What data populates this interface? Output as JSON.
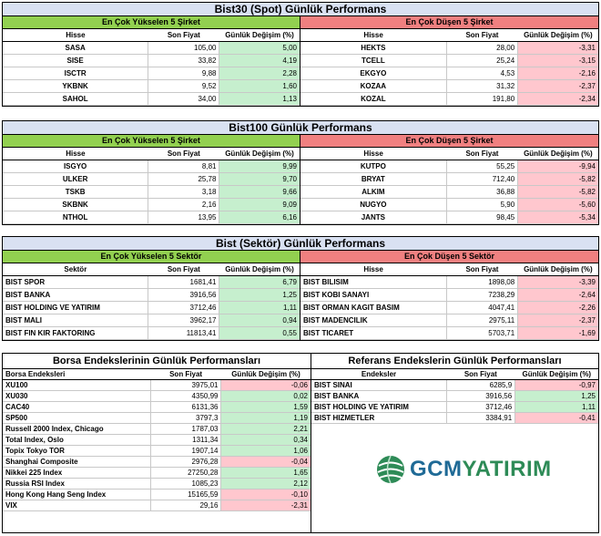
{
  "bist30": {
    "title": "Bist30 (Spot) Günlük Performans",
    "left": {
      "subtitle": "En Çok Yükselen 5 Şirket",
      "headers": [
        "Hisse",
        "Son Fiyat",
        "Günlük Değişim (%)"
      ],
      "rows": [
        {
          "name": "SASA",
          "price": "105,00",
          "change": "5,00"
        },
        {
          "name": "SISE",
          "price": "33,82",
          "change": "4,19"
        },
        {
          "name": "ISCTR",
          "price": "9,88",
          "change": "2,28"
        },
        {
          "name": "YKBNK",
          "price": "9,52",
          "change": "1,60"
        },
        {
          "name": "SAHOL",
          "price": "34,00",
          "change": "1,13"
        }
      ]
    },
    "right": {
      "subtitle": "En Çok Düşen 5 Şirket",
      "headers": [
        "Hisse",
        "Son Fiyat",
        "Günlük Değişim (%)"
      ],
      "rows": [
        {
          "name": "HEKTS",
          "price": "28,00",
          "change": "-3,31"
        },
        {
          "name": "TCELL",
          "price": "25,24",
          "change": "-3,15"
        },
        {
          "name": "EKGYO",
          "price": "4,53",
          "change": "-2,16"
        },
        {
          "name": "KOZAA",
          "price": "31,32",
          "change": "-2,37"
        },
        {
          "name": "KOZAL",
          "price": "191,80",
          "change": "-2,34"
        }
      ]
    }
  },
  "bist100": {
    "title": "Bist100 Günlük Performans",
    "left": {
      "subtitle": "En Çok Yükselen 5 Şirket",
      "headers": [
        "Hisse",
        "Son Fiyat",
        "Günlük Değişim (%)"
      ],
      "rows": [
        {
          "name": "ISGYO",
          "price": "8,81",
          "change": "9,99"
        },
        {
          "name": "ULKER",
          "price": "25,78",
          "change": "9,70"
        },
        {
          "name": "TSKB",
          "price": "3,18",
          "change": "9,66"
        },
        {
          "name": "SKBNK",
          "price": "2,16",
          "change": "9,09"
        },
        {
          "name": "NTHOL",
          "price": "13,95",
          "change": "6,16"
        }
      ]
    },
    "right": {
      "subtitle": "En Çok Düşen 5 Şirket",
      "headers": [
        "Hisse",
        "Son Fiyat",
        "Günlük Değişim (%)"
      ],
      "rows": [
        {
          "name": "KUTPO",
          "price": "55,25",
          "change": "-9,94"
        },
        {
          "name": "BRYAT",
          "price": "712,40",
          "change": "-5,82"
        },
        {
          "name": "ALKIM",
          "price": "36,88",
          "change": "-5,82"
        },
        {
          "name": "NUGYO",
          "price": "5,90",
          "change": "-5,60"
        },
        {
          "name": "JANTS",
          "price": "98,45",
          "change": "-5,34"
        }
      ]
    }
  },
  "sektor": {
    "title": "Bist (Sektör) Günlük Performans",
    "left": {
      "subtitle": "En Çok Yükselen 5 Sektör",
      "headers": [
        "Sektör",
        "Son Fiyat",
        "Günlük Değişim (%)"
      ],
      "rows": [
        {
          "name": "BIST SPOR",
          "price": "1681,41",
          "change": "6,79"
        },
        {
          "name": "BIST BANKA",
          "price": "3916,56",
          "change": "1,25"
        },
        {
          "name": "BIST HOLDING VE YATIRIM",
          "price": "3712,46",
          "change": "1,11"
        },
        {
          "name": "BIST MALI",
          "price": "3962,17",
          "change": "0,94"
        },
        {
          "name": "BIST FIN KIR FAKTORING",
          "price": "11813,41",
          "change": "0,55"
        }
      ]
    },
    "right": {
      "subtitle": "En Çok Düşen 5 Sektör",
      "headers": [
        "Hisse",
        "Son Fiyat",
        "Günlük Değişim (%)"
      ],
      "rows": [
        {
          "name": "BIST BILISIM",
          "price": "1898,08",
          "change": "-3,39"
        },
        {
          "name": "BIST KOBI SANAYI",
          "price": "7238,29",
          "change": "-2,64"
        },
        {
          "name": "BIST ORMAN KAGIT BASIM",
          "price": "4047,41",
          "change": "-2,26"
        },
        {
          "name": "BIST MADENCILIK",
          "price": "2975,11",
          "change": "-2,37"
        },
        {
          "name": "BIST TICARET",
          "price": "5703,71",
          "change": "-1,69"
        }
      ]
    }
  },
  "borsa": {
    "title": "Borsa Endekslerinin Günlük Performansları",
    "headers": [
      "Borsa Endeksleri",
      "Son Fiyat",
      "Günlük Değişim (%)"
    ],
    "rows": [
      {
        "name": "XU100",
        "price": "3975,01",
        "change": "-0,06"
      },
      {
        "name": "XU030",
        "price": "4350,99",
        "change": "0,02"
      },
      {
        "name": "CAC40",
        "price": "6131,36",
        "change": "1,59"
      },
      {
        "name": "SP500",
        "price": "3797,3",
        "change": "1,19"
      },
      {
        "name": "Russell 2000 Index, Chicago",
        "price": "1787,03",
        "change": "2,21"
      },
      {
        "name": "Total Index, Oslo",
        "price": "1311,34",
        "change": "0,34"
      },
      {
        "name": "Topix Tokyo TOR",
        "price": "1907,14",
        "change": "1,06"
      },
      {
        "name": "Shanghai Composite",
        "price": "2976,28",
        "change": "-0,04"
      },
      {
        "name": "Nikkei 225 Index",
        "price": "27250,28",
        "change": "1,65"
      },
      {
        "name": "Russia RSI Index",
        "price": "1085,23",
        "change": "2,12"
      },
      {
        "name": "Hong Kong Hang Seng Index",
        "price": "15165,59",
        "change": "-0,10"
      },
      {
        "name": "VIX",
        "price": "29,16",
        "change": "-2,31"
      }
    ]
  },
  "referans": {
    "title": "Referans Endekslerin  Günlük Performansları",
    "headers": [
      "Endeksler",
      "Son Fiyat",
      "Günlük Değişim (%)"
    ],
    "rows": [
      {
        "name": "BIST SINAI",
        "price": "6285,9",
        "change": "-0,97"
      },
      {
        "name": "BIST BANKA",
        "price": "3916,56",
        "change": "1,25"
      },
      {
        "name": "BIST HOLDING VE YATIRIM",
        "price": "3712,46",
        "change": "1,11"
      },
      {
        "name": "BIST HIZMETLER",
        "price": "3384,91",
        "change": "-0,41"
      }
    ]
  },
  "logo": {
    "text1": "GCM",
    "text2": "YATIRIM"
  },
  "colors": {
    "title_bg": "#d9e1f2",
    "up_header": "#92d050",
    "down_header": "#f08080",
    "pos_cell": "#c6efce",
    "neg_cell": "#ffc7ce"
  }
}
